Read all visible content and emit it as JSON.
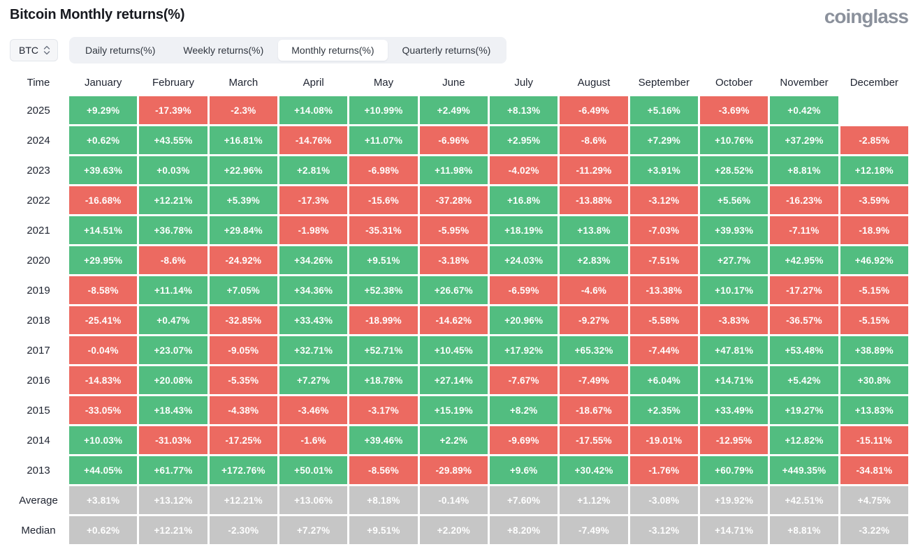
{
  "page": {
    "title": "Bitcoin Monthly returns(%)",
    "logo_text": "coinglass"
  },
  "controls": {
    "coin_selector": {
      "value": "BTC"
    },
    "tabs": [
      {
        "label": "Daily returns(%)",
        "active": false
      },
      {
        "label": "Weekly returns(%)",
        "active": false
      },
      {
        "label": "Monthly returns(%)",
        "active": true
      },
      {
        "label": "Quarterly returns(%)",
        "active": false
      }
    ]
  },
  "chart_data": {
    "type": "heatmap",
    "title": "Bitcoin Monthly returns(%)",
    "value_format": "percent",
    "colors": {
      "positive": "#52bd80",
      "negative": "#ec6a61",
      "neutral": "#c6c6c6"
    },
    "columns": [
      "Time",
      "January",
      "February",
      "March",
      "April",
      "May",
      "June",
      "July",
      "August",
      "September",
      "October",
      "November",
      "December"
    ],
    "rows": [
      {
        "label": "2025",
        "values": [
          "+9.29%",
          "-17.39%",
          "-2.3%",
          "+14.08%",
          "+10.99%",
          "+2.49%",
          "+8.13%",
          "-6.49%",
          "+5.16%",
          "-3.69%",
          "+0.42%",
          null
        ]
      },
      {
        "label": "2024",
        "values": [
          "+0.62%",
          "+43.55%",
          "+16.81%",
          "-14.76%",
          "+11.07%",
          "-6.96%",
          "+2.95%",
          "-8.6%",
          "+7.29%",
          "+10.76%",
          "+37.29%",
          "-2.85%"
        ]
      },
      {
        "label": "2023",
        "values": [
          "+39.63%",
          "+0.03%",
          "+22.96%",
          "+2.81%",
          "-6.98%",
          "+11.98%",
          "-4.02%",
          "-11.29%",
          "+3.91%",
          "+28.52%",
          "+8.81%",
          "+12.18%"
        ]
      },
      {
        "label": "2022",
        "values": [
          "-16.68%",
          "+12.21%",
          "+5.39%",
          "-17.3%",
          "-15.6%",
          "-37.28%",
          "+16.8%",
          "-13.88%",
          "-3.12%",
          "+5.56%",
          "-16.23%",
          "-3.59%"
        ]
      },
      {
        "label": "2021",
        "values": [
          "+14.51%",
          "+36.78%",
          "+29.84%",
          "-1.98%",
          "-35.31%",
          "-5.95%",
          "+18.19%",
          "+13.8%",
          "-7.03%",
          "+39.93%",
          "-7.11%",
          "-18.9%"
        ]
      },
      {
        "label": "2020",
        "values": [
          "+29.95%",
          "-8.6%",
          "-24.92%",
          "+34.26%",
          "+9.51%",
          "-3.18%",
          "+24.03%",
          "+2.83%",
          "-7.51%",
          "+27.7%",
          "+42.95%",
          "+46.92%"
        ]
      },
      {
        "label": "2019",
        "values": [
          "-8.58%",
          "+11.14%",
          "+7.05%",
          "+34.36%",
          "+52.38%",
          "+26.67%",
          "-6.59%",
          "-4.6%",
          "-13.38%",
          "+10.17%",
          "-17.27%",
          "-5.15%"
        ]
      },
      {
        "label": "2018",
        "values": [
          "-25.41%",
          "+0.47%",
          "-32.85%",
          "+33.43%",
          "-18.99%",
          "-14.62%",
          "+20.96%",
          "-9.27%",
          "-5.58%",
          "-3.83%",
          "-36.57%",
          "-5.15%"
        ]
      },
      {
        "label": "2017",
        "values": [
          "-0.04%",
          "+23.07%",
          "-9.05%",
          "+32.71%",
          "+52.71%",
          "+10.45%",
          "+17.92%",
          "+65.32%",
          "-7.44%",
          "+47.81%",
          "+53.48%",
          "+38.89%"
        ]
      },
      {
        "label": "2016",
        "values": [
          "-14.83%",
          "+20.08%",
          "-5.35%",
          "+7.27%",
          "+18.78%",
          "+27.14%",
          "-7.67%",
          "-7.49%",
          "+6.04%",
          "+14.71%",
          "+5.42%",
          "+30.8%"
        ]
      },
      {
        "label": "2015",
        "values": [
          "-33.05%",
          "+18.43%",
          "-4.38%",
          "-3.46%",
          "-3.17%",
          "+15.19%",
          "+8.2%",
          "-18.67%",
          "+2.35%",
          "+33.49%",
          "+19.27%",
          "+13.83%"
        ]
      },
      {
        "label": "2014",
        "values": [
          "+10.03%",
          "-31.03%",
          "-17.25%",
          "-1.6%",
          "+39.46%",
          "+2.2%",
          "-9.69%",
          "-17.55%",
          "-19.01%",
          "-12.95%",
          "+12.82%",
          "-15.11%"
        ]
      },
      {
        "label": "2013",
        "values": [
          "+44.05%",
          "+61.77%",
          "+172.76%",
          "+50.01%",
          "-8.56%",
          "-29.89%",
          "+9.6%",
          "+30.42%",
          "-1.76%",
          "+60.79%",
          "+449.35%",
          "-34.81%"
        ]
      },
      {
        "label": "Average",
        "style": "neutral",
        "values": [
          "+3.81%",
          "+13.12%",
          "+12.21%",
          "+13.06%",
          "+8.18%",
          "-0.14%",
          "+7.60%",
          "+1.12%",
          "-3.08%",
          "+19.92%",
          "+42.51%",
          "+4.75%"
        ]
      },
      {
        "label": "Median",
        "style": "neutral",
        "values": [
          "+0.62%",
          "+12.21%",
          "-2.30%",
          "+7.27%",
          "+9.51%",
          "+2.20%",
          "+8.20%",
          "-7.49%",
          "-3.12%",
          "+14.71%",
          "+8.81%",
          "-3.22%"
        ]
      }
    ]
  }
}
